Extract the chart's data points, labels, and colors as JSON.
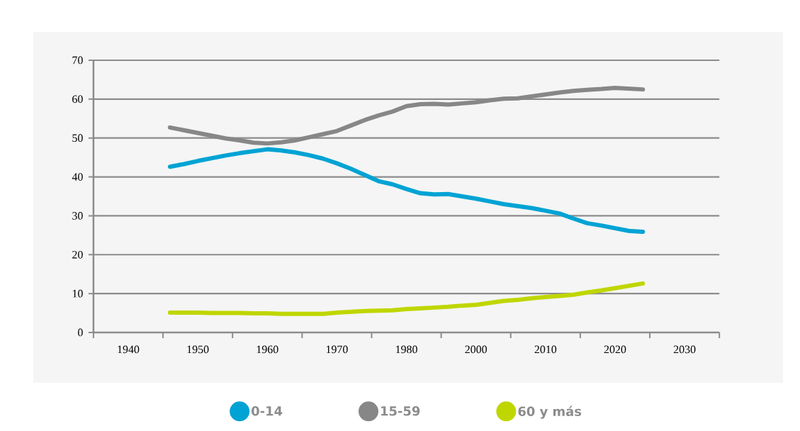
{
  "chart_data": {
    "type": "line",
    "categories": [
      null,
      null,
      "1940",
      null,
      null,
      null,
      null,
      "1950",
      null,
      null,
      null,
      null,
      "1960",
      null,
      null,
      null,
      null,
      "1970",
      null,
      null,
      null,
      null,
      "1980",
      null,
      null,
      null,
      null,
      "2000",
      null,
      null,
      null,
      null,
      "2010",
      null,
      null,
      null,
      null,
      "2020",
      null,
      null,
      null,
      null,
      "2030",
      null,
      null
    ],
    "ylim": [
      0,
      70
    ],
    "yticks": [
      0,
      10,
      20,
      30,
      40,
      50,
      60,
      70
    ],
    "grid": "y",
    "legend": "bottom",
    "marker": "none",
    "line_style": "solid",
    "series": [
      {
        "name": "0-14",
        "color": "#00a3d4",
        "values": [
          null,
          null,
          null,
          null,
          null,
          42.6,
          43.3,
          44.1,
          44.8,
          45.5,
          46.1,
          46.6,
          47.1,
          46.8,
          46.3,
          45.6,
          44.7,
          43.5,
          42.1,
          40.5,
          38.9,
          38.1,
          36.9,
          35.8,
          35.5,
          35.6,
          35.0,
          34.4,
          33.7,
          33.0,
          32.5,
          32.0,
          31.3,
          30.6,
          29.3,
          28.1,
          27.5,
          26.8,
          26.1,
          25.9,
          null,
          null,
          null,
          null,
          null
        ]
      },
      {
        "name": "15-59",
        "color": "#878787",
        "values": [
          null,
          null,
          null,
          null,
          null,
          52.7,
          52.0,
          51.3,
          50.6,
          49.9,
          49.4,
          48.8,
          48.6,
          48.9,
          49.4,
          50.2,
          51.0,
          51.8,
          53.2,
          54.6,
          55.8,
          56.8,
          58.2,
          58.7,
          58.8,
          58.6,
          58.9,
          59.2,
          59.7,
          60.1,
          60.2,
          60.7,
          61.2,
          61.7,
          62.1,
          62.4,
          62.6,
          62.9,
          62.7,
          62.5,
          null,
          null,
          null,
          null,
          null
        ]
      },
      {
        "name": "60 y más",
        "color": "#bfd600",
        "values": [
          null,
          null,
          null,
          null,
          null,
          5.1,
          5.1,
          5.1,
          5.0,
          5.0,
          5.0,
          4.9,
          4.9,
          4.8,
          4.8,
          4.8,
          4.8,
          5.1,
          5.3,
          5.5,
          5.6,
          5.7,
          6.0,
          6.2,
          6.4,
          6.6,
          6.9,
          7.1,
          7.6,
          8.1,
          8.4,
          8.8,
          9.1,
          9.4,
          9.7,
          10.3,
          10.8,
          11.4,
          12.0,
          12.6,
          null,
          null,
          null,
          null,
          null
        ]
      }
    ]
  }
}
